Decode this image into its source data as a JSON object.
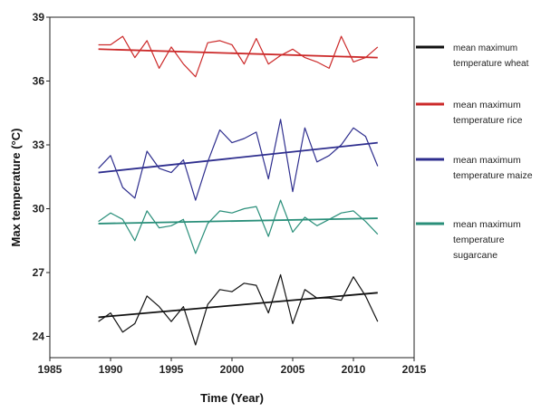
{
  "chart_data": {
    "type": "line",
    "title": "",
    "xlabel": "Time (Year)",
    "ylabel": "Max temperature  (°C)",
    "xlim": [
      1985,
      2015
    ],
    "ylim": [
      23,
      39
    ],
    "xticks": [
      "1985",
      "1990",
      "1995",
      "2000",
      "2005",
      "2010",
      "2015"
    ],
    "yticks": [
      "24",
      "27",
      "30",
      "33",
      "36",
      "39"
    ],
    "x": [
      1989,
      1990,
      1991,
      1992,
      1993,
      1994,
      1995,
      1996,
      1997,
      1998,
      1999,
      2000,
      2001,
      2002,
      2003,
      2004,
      2005,
      2006,
      2007,
      2008,
      2009,
      2010,
      2011,
      2012
    ],
    "legend_position": "right",
    "series": [
      {
        "name": "mean maximum temperature wheat",
        "legend_lines": [
          "mean maximum",
          "temperature wheat"
        ],
        "color": "#111111",
        "values": [
          24.7,
          25.1,
          24.2,
          24.6,
          25.9,
          25.4,
          24.7,
          25.4,
          23.6,
          25.5,
          26.2,
          26.1,
          26.5,
          26.4,
          25.1,
          26.9,
          24.6,
          26.2,
          25.8,
          25.8,
          25.7,
          26.8,
          25.9,
          24.7
        ],
        "trend": [
          24.9,
          26.05
        ]
      },
      {
        "name": "mean maximum temperature rice",
        "legend_lines": [
          "mean maximum",
          "temperature rice"
        ],
        "color": "#cc2a2a",
        "values": [
          37.7,
          37.7,
          38.1,
          37.1,
          37.9,
          36.6,
          37.6,
          36.8,
          36.2,
          37.8,
          37.9,
          37.7,
          36.8,
          38.0,
          36.8,
          37.2,
          37.5,
          37.1,
          36.9,
          36.6,
          38.1,
          36.9,
          37.1,
          37.6
        ],
        "trend": [
          37.5,
          37.1
        ]
      },
      {
        "name": "mean maximum temperature maize",
        "legend_lines": [
          "mean maximum",
          "temperature maize"
        ],
        "color": "#2e2e8e",
        "values": [
          31.9,
          32.5,
          31.0,
          30.5,
          32.7,
          31.9,
          31.7,
          32.3,
          30.4,
          32.2,
          33.7,
          33.1,
          33.3,
          33.6,
          31.4,
          34.2,
          30.8,
          33.8,
          32.2,
          32.5,
          33.0,
          33.8,
          33.4,
          32.0
        ],
        "trend": [
          31.7,
          33.1
        ]
      },
      {
        "name": "mean maximum temperature sugarcane",
        "legend_lines": [
          "mean maximum",
          "temperature",
          "sugarcane"
        ],
        "color": "#2a8f7a",
        "values": [
          29.4,
          29.8,
          29.5,
          28.5,
          29.9,
          29.1,
          29.2,
          29.5,
          27.9,
          29.3,
          29.9,
          29.8,
          30.0,
          30.1,
          28.7,
          30.4,
          28.9,
          29.6,
          29.2,
          29.5,
          29.8,
          29.9,
          29.4,
          28.8
        ],
        "trend": [
          29.3,
          29.55
        ]
      }
    ]
  }
}
